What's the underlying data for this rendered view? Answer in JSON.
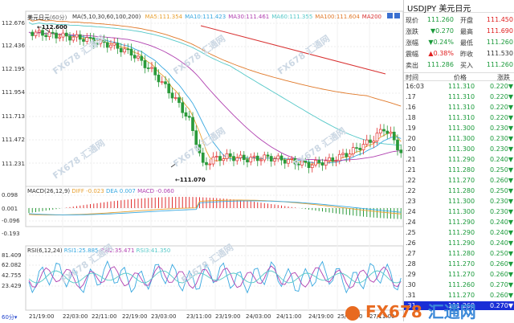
{
  "chart": {
    "title": "美元日元",
    "period": "(60分)",
    "ma_label": "MA(5,10,30,60,100,200)",
    "ma": [
      {
        "label": "MA5:111.354",
        "color": "#e8a030"
      },
      {
        "label": "MA10:111.423",
        "color": "#38a8e0"
      },
      {
        "label": "MA30:111.461",
        "color": "#b040b0"
      },
      {
        "label": "MA60:111.355",
        "color": "#55c8c8"
      },
      {
        "label": "MA100:111.604",
        "color": "#e07828"
      },
      {
        "label": "MA200",
        "color": "#d83030"
      }
    ],
    "price_ticks": [
      "112.676",
      "112.436",
      "112.195",
      "111.954",
      "111.713",
      "111.472",
      "111.231"
    ],
    "high_label": "112.600",
    "low_label": "111.070",
    "macd": {
      "label": "MACD(26,12,9)",
      "diff": "DIFF -0.023",
      "dea": "DEA 0.007",
      "macd": "MACD -0.060",
      "ticks": [
        "0.098",
        "0.001",
        "-0.096",
        "-0.193"
      ]
    },
    "rsi": {
      "label": "RSI(6,12,24)",
      "rsi1": "RSI1:25.885",
      "rsi2": "RSI2:35.471",
      "rsi3": "RSI3:41.350",
      "ticks": [
        "81.409",
        "62.082",
        "42.755",
        "23.429"
      ]
    },
    "time_ticks": [
      "21/19:00",
      "22/03:00",
      "22/11:00",
      "22/19:00",
      "23/03:00",
      "23/11:00",
      "23/19:00",
      "24/03:00",
      "24/11:00",
      "24/19:00",
      "25/03:00",
      "27/11:00"
    ],
    "period_btn": "60分",
    "watermark": "FX678 汇通网",
    "watermark_big_fx": "FX678",
    "watermark_big_cn": "汇通网"
  },
  "panel": {
    "symbol": "USDJPY",
    "name": "美元日元",
    "rows": [
      {
        "l1": "现价",
        "v1": "111.260",
        "c1": "green",
        "l2": "开盘",
        "v2": "111.450",
        "c2": "red"
      },
      {
        "l1": "涨跌",
        "v1": "▼0.270",
        "c1": "green",
        "l2": "最高",
        "v2": "111.690",
        "c2": "red"
      },
      {
        "l1": "涨幅",
        "v1": "▼0.24%",
        "c1": "green",
        "l2": "最低",
        "v2": "111.260",
        "c2": "green"
      },
      {
        "l1": "震幅",
        "v1": "▲0.38%",
        "c1": "red",
        "l2": "昨收",
        "v2": "111.530",
        "c2": "dark"
      },
      {
        "l1": "卖出",
        "v1": "111.286",
        "c1": "green",
        "l2": "买入",
        "v2": "111.260",
        "c2": "green"
      }
    ],
    "table_header": {
      "time": "时间",
      "price": "价格",
      "change": "涨跌"
    },
    "ticks": [
      {
        "time": "16:03",
        "price": "111.310",
        "change": "0.220▼"
      },
      {
        "time": ".17",
        "price": "111.310",
        "change": "0.220▼"
      },
      {
        "time": ".16",
        "price": "111.310",
        "change": "0.220▼"
      },
      {
        "time": ".18",
        "price": "111.310",
        "change": "0.220▼"
      },
      {
        "time": ".19",
        "price": "111.300",
        "change": "0.230▼"
      },
      {
        "time": ".20",
        "price": "111.300",
        "change": "0.230▼"
      },
      {
        "time": ".20",
        "price": "111.300",
        "change": "0.230▼"
      },
      {
        "time": ".21",
        "price": "111.290",
        "change": "0.240▼"
      },
      {
        "time": ".21",
        "price": "111.280",
        "change": "0.250▼"
      },
      {
        "time": ".22",
        "price": "111.270",
        "change": "0.260▼"
      },
      {
        "time": ".22",
        "price": "111.280",
        "change": "0.250▼"
      },
      {
        "time": ".23",
        "price": "111.300",
        "change": "0.230▼"
      },
      {
        "time": ".24",
        "price": "111.300",
        "change": "0.230▼"
      },
      {
        "time": ".24",
        "price": "111.290",
        "change": "0.240▼"
      },
      {
        "time": ".25",
        "price": "111.290",
        "change": "0.240▼"
      },
      {
        "time": ".26",
        "price": "111.290",
        "change": "0.240▼"
      },
      {
        "time": ".27",
        "price": "111.280",
        "change": "0.250▼"
      },
      {
        "time": ".28",
        "price": "111.270",
        "change": "0.260▼"
      },
      {
        "time": ".29",
        "price": "111.270",
        "change": "0.260▼"
      },
      {
        "time": ".30",
        "price": "111.260",
        "change": "0.270▼"
      },
      {
        "time": ".31",
        "price": "111.270",
        "change": "0.260▼"
      },
      {
        "time": ".31",
        "price": "111.260",
        "change": "0.270▼"
      }
    ]
  }
}
